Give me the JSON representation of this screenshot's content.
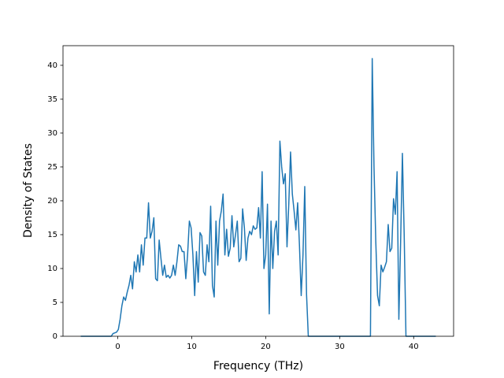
{
  "chart_data": {
    "type": "line",
    "xlabel": "Frequency (THz)",
    "ylabel": "Density of States",
    "color": "#1f77b4",
    "x": [
      -5,
      -0.88,
      -0.64,
      -0.4,
      -0.16,
      0.08,
      0.32,
      0.56,
      0.8,
      1.04,
      1.28,
      1.52,
      1.76,
      2,
      2.24,
      2.48,
      2.72,
      2.96,
      3.2,
      3.44,
      3.68,
      3.92,
      4.16,
      4.4,
      4.64,
      4.88,
      5.12,
      5.36,
      5.6,
      5.84,
      6.08,
      6.32,
      6.56,
      6.8,
      7.04,
      7.28,
      7.52,
      7.76,
      8,
      8.24,
      8.48,
      8.72,
      8.96,
      9.2,
      9.44,
      9.68,
      9.92,
      10.16,
      10.4,
      10.64,
      10.88,
      11.12,
      11.36,
      11.6,
      11.84,
      12.08,
      12.32,
      12.56,
      12.8,
      13.04,
      13.28,
      13.52,
      13.76,
      14,
      14.24,
      14.48,
      14.72,
      14.96,
      15.2,
      15.44,
      15.68,
      15.92,
      16.16,
      16.4,
      16.64,
      16.88,
      17.12,
      17.36,
      17.6,
      17.84,
      18.08,
      18.32,
      18.56,
      18.8,
      19.04,
      19.28,
      19.52,
      19.76,
      20,
      20.24,
      20.48,
      20.72,
      20.96,
      21.2,
      21.44,
      21.68,
      21.92,
      22.16,
      22.4,
      22.64,
      22.88,
      23.12,
      23.36,
      23.6,
      23.84,
      24.08,
      24.32,
      24.56,
      24.8,
      25.04,
      25.28,
      25.52,
      25.76,
      34.16,
      34.4,
      34.64,
      34.88,
      35.12,
      35.36,
      35.6,
      35.84,
      36.08,
      36.32,
      36.56,
      36.8,
      37.04,
      37.28,
      37.52,
      37.76,
      38,
      38.24,
      38.48,
      38.72,
      38.96,
      43
    ],
    "values": [
      0,
      0,
      0.4,
      0.5,
      0.6,
      1,
      2.5,
      4.5,
      5.8,
      5.3,
      6.5,
      7.5,
      9,
      7,
      11,
      9.5,
      12,
      9.5,
      13.5,
      10.5,
      14.5,
      14.5,
      19.7,
      14.5,
      15.5,
      17.5,
      8.5,
      8.2,
      14.2,
      11.5,
      9,
      10.5,
      8.7,
      9,
      8.6,
      9,
      10.5,
      9,
      11,
      13.5,
      13.3,
      12.5,
      12.5,
      8.5,
      12,
      17,
      16,
      12,
      6,
      12.5,
      8,
      15.3,
      14.8,
      9.5,
      9,
      13.5,
      11,
      19.2,
      7.5,
      5.8,
      17,
      10.5,
      17,
      18.5,
      21,
      12,
      15.8,
      11.8,
      13,
      17.8,
      13.2,
      15,
      17,
      11,
      11.5,
      18.8,
      16,
      11.2,
      14.5,
      15.5,
      15,
      16.3,
      15.8,
      16,
      19,
      14.5,
      24.3,
      10,
      12,
      19.5,
      3.3,
      17,
      10,
      15.5,
      17,
      12,
      28.8,
      25,
      22.5,
      24,
      13.2,
      19.5,
      27.2,
      21,
      18.5,
      15.7,
      19.7,
      13.5,
      6,
      12,
      22.1,
      6.2,
      0,
      0,
      41,
      25,
      14,
      6,
      4.5,
      10.5,
      9.5,
      10.2,
      11,
      16.5,
      12.5,
      13,
      20.3,
      18,
      24.3,
      2.5,
      14,
      27,
      15,
      0,
      0
    ],
    "xlim": [
      -7.4,
      45.4
    ],
    "xticks": [
      0,
      10,
      20,
      30,
      40
    ],
    "ylim": [
      0,
      42.9
    ],
    "yticks": [
      0,
      5,
      10,
      15,
      20,
      25,
      30,
      35,
      40
    ]
  }
}
